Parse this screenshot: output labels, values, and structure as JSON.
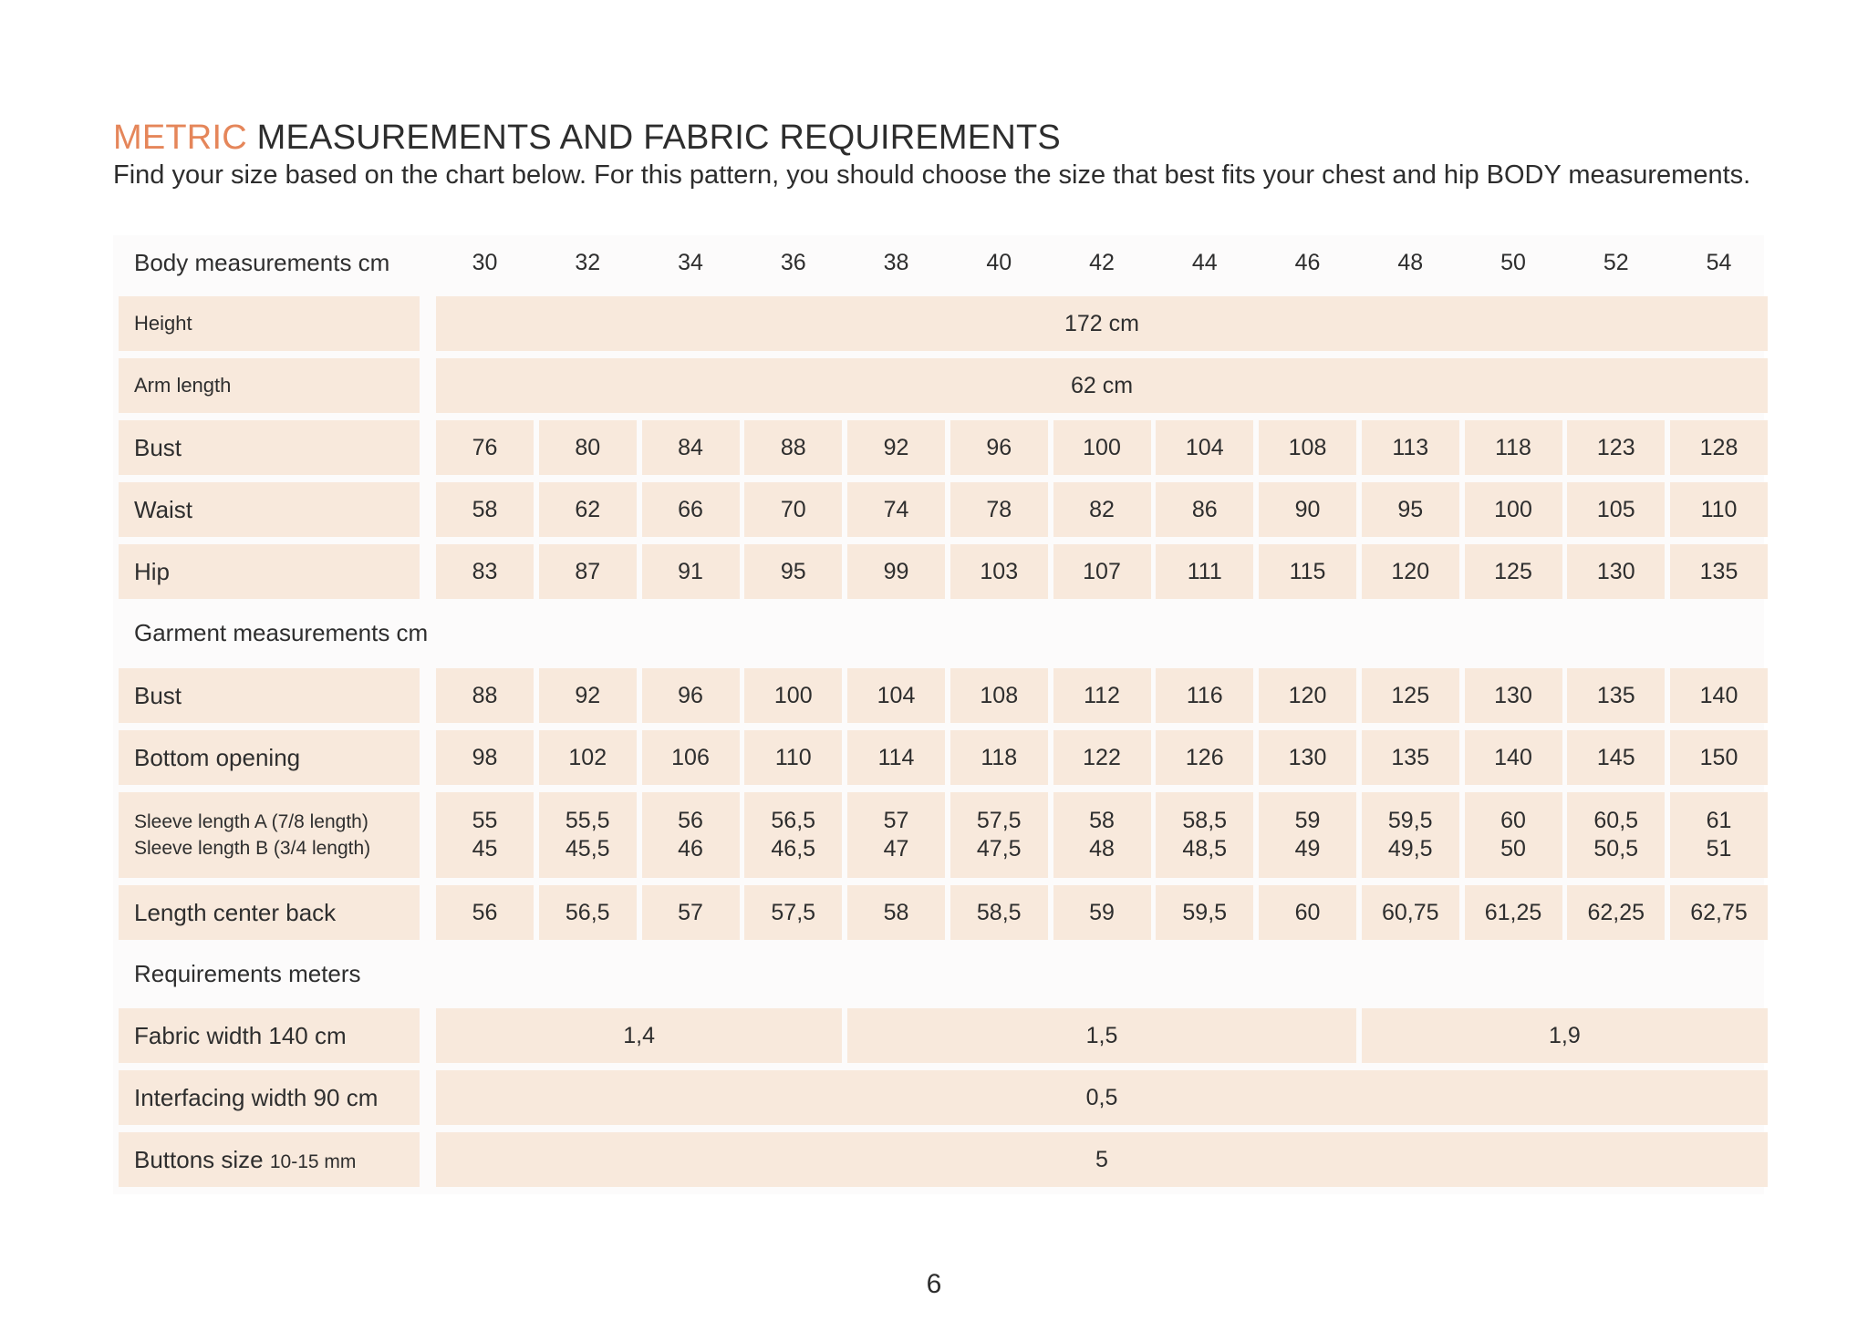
{
  "header": {
    "title_accent": "METRIC",
    "title_rest": " MEASUREMENTS AND FABRIC REQUIREMENTS",
    "subtitle": "Find your size based on the chart below. For this pattern, you should choose the size that best fits your chest and hip BODY measurements."
  },
  "table": {
    "sizes_label": "Body measurements cm",
    "sizes": [
      "30",
      "32",
      "34",
      "36",
      "38",
      "40",
      "42",
      "44",
      "46",
      "48",
      "50",
      "52",
      "54"
    ],
    "height": {
      "label": "Height",
      "value": "172 cm"
    },
    "arm_length": {
      "label": "Arm length",
      "value": "62 cm"
    },
    "body_rows": [
      {
        "label": "Bust",
        "values": [
          "76",
          "80",
          "84",
          "88",
          "92",
          "96",
          "100",
          "104",
          "108",
          "113",
          "118",
          "123",
          "128"
        ]
      },
      {
        "label": "Waist",
        "values": [
          "58",
          "62",
          "66",
          "70",
          "74",
          "78",
          "82",
          "86",
          "90",
          "95",
          "100",
          "105",
          "110"
        ]
      },
      {
        "label": "Hip",
        "values": [
          "83",
          "87",
          "91",
          "95",
          "99",
          "103",
          "107",
          "111",
          "115",
          "120",
          "125",
          "130",
          "135"
        ]
      }
    ],
    "garment_section_label": "Garment measurements cm",
    "garment_rows": [
      {
        "label": "Bust",
        "values": [
          "88",
          "92",
          "96",
          "100",
          "104",
          "108",
          "112",
          "116",
          "120",
          "125",
          "130",
          "135",
          "140"
        ]
      },
      {
        "label": "Bottom opening",
        "values": [
          "98",
          "102",
          "106",
          "110",
          "114",
          "118",
          "122",
          "126",
          "130",
          "135",
          "140",
          "145",
          "150"
        ]
      }
    ],
    "sleeve": {
      "label_a": "Sleeve length  A (7/8 length)",
      "label_b": "Sleeve length B (3/4 length)",
      "values_a": [
        "55",
        "55,5",
        "56",
        "56,5",
        "57",
        "57,5",
        "58",
        "58,5",
        "59",
        "59,5",
        "60",
        "60,5",
        "61"
      ],
      "values_b": [
        "45",
        "45,5",
        "46",
        "46,5",
        "47",
        "47,5",
        "48",
        "48,5",
        "49",
        "49,5",
        "50",
        "50,5",
        "51"
      ]
    },
    "length_center_back": {
      "label": "Length center back",
      "values": [
        "56",
        "56,5",
        "57",
        "57,5",
        "58",
        "58,5",
        "59",
        "59,5",
        "60",
        "60,75",
        "61,25",
        "62,25",
        "62,75"
      ]
    },
    "requirements_section_label": "Requirements meters",
    "fabric": {
      "label": "Fabric width 140 cm",
      "values": [
        "1,4",
        "1,5",
        "1,9"
      ]
    },
    "interfacing": {
      "label": "Interfacing width 90 cm",
      "value": "0,5"
    },
    "buttons": {
      "label_main": "Buttons size ",
      "label_unit": "10-15 mm",
      "value": "5"
    }
  },
  "page_number": "6",
  "colors": {
    "accent": "#e5865a",
    "cell_fill": "#f8e9dc",
    "table_bg": "#fcfbfb"
  }
}
